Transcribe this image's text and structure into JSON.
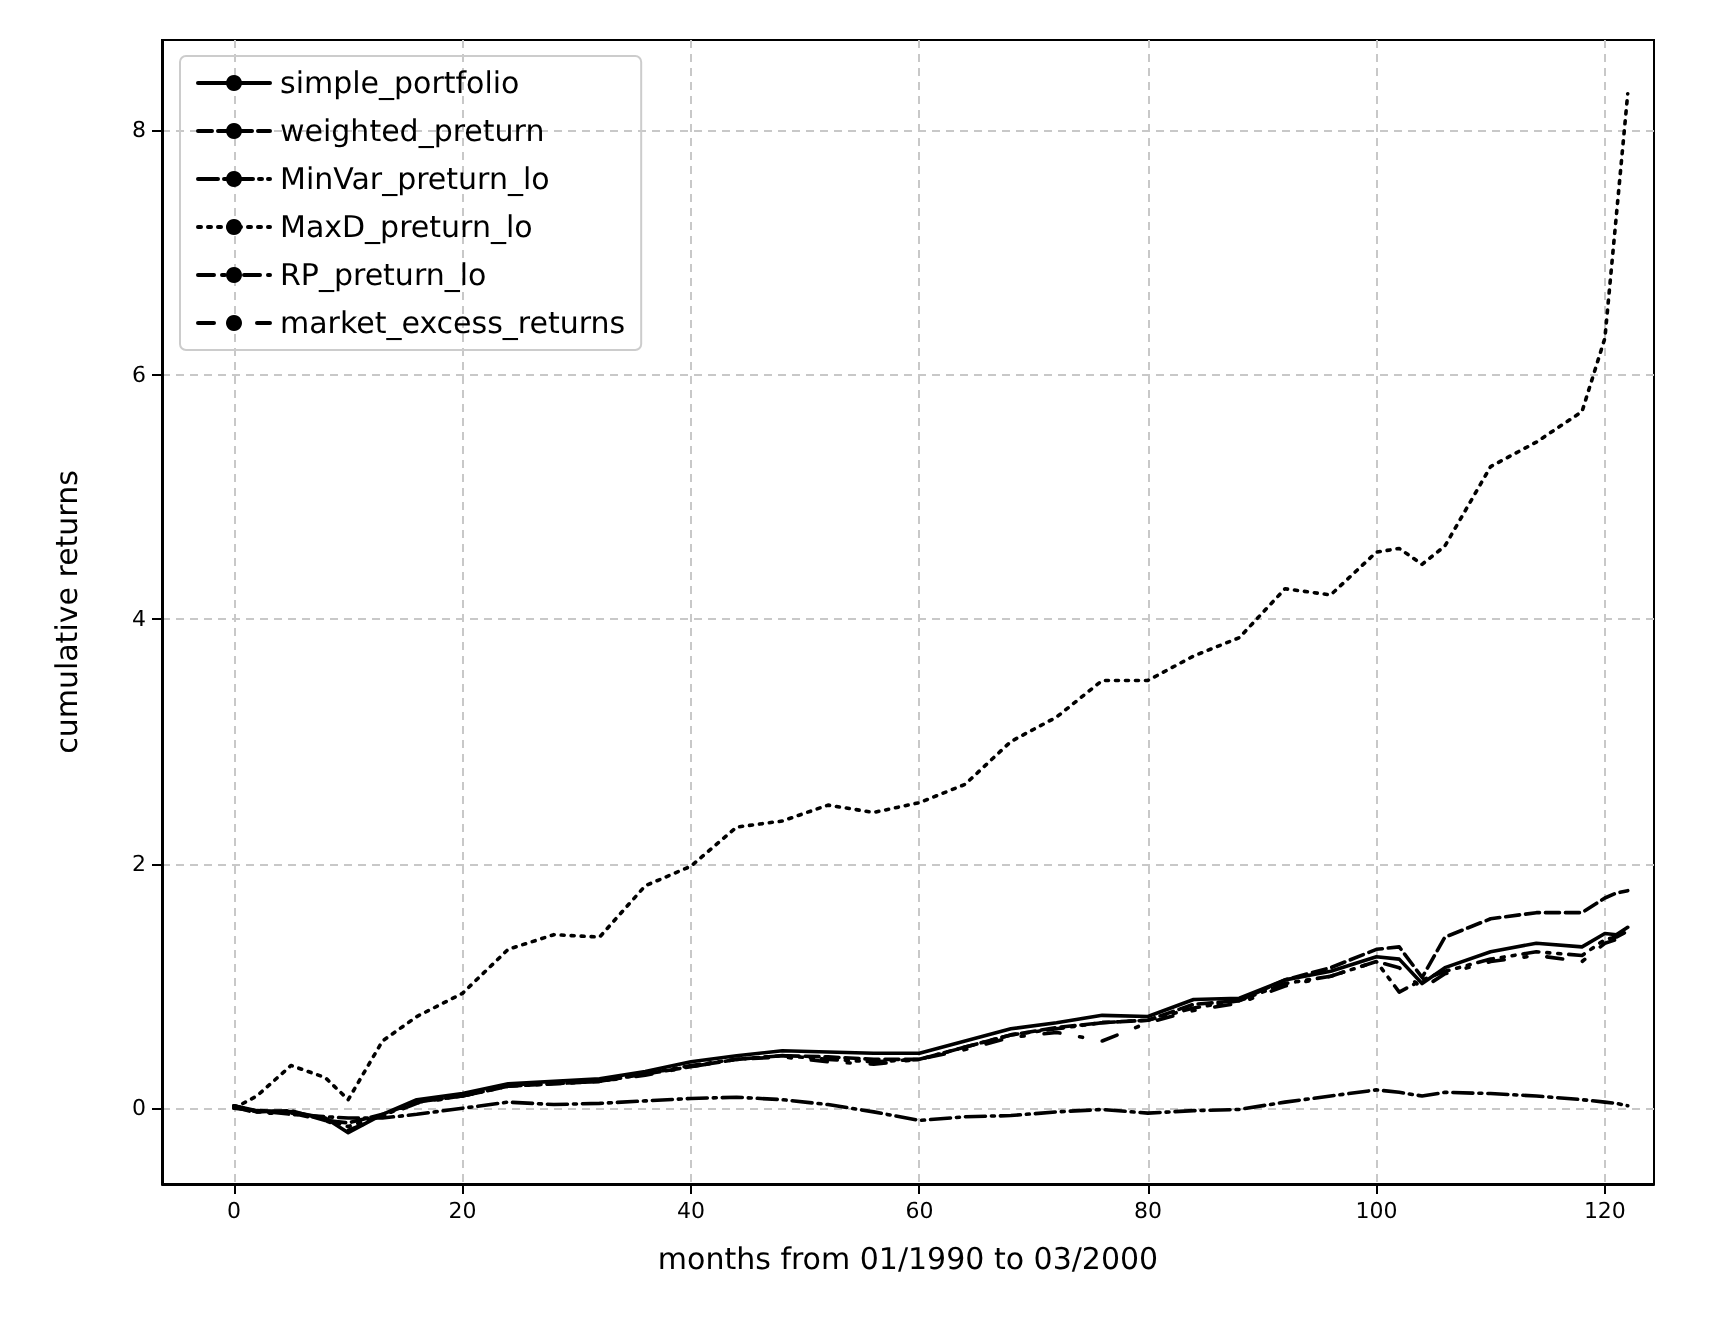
{
  "chart_data": {
    "type": "line",
    "xlabel": "months from 01/1990 to 03/2000",
    "ylabel": "cumulative returns",
    "x": [
      0,
      2,
      5,
      8,
      10,
      13,
      16,
      20,
      24,
      28,
      32,
      36,
      40,
      44,
      48,
      52,
      56,
      60,
      64,
      68,
      72,
      76,
      80,
      84,
      88,
      92,
      96,
      100,
      102,
      104,
      106,
      110,
      114,
      118,
      120,
      121,
      122
    ],
    "series": [
      {
        "name": "simple_portfolio",
        "color": "#000000",
        "line_style": "solid",
        "values": [
          0.02,
          -0.02,
          -0.03,
          -0.08,
          -0.2,
          -0.05,
          0.07,
          0.12,
          0.2,
          0.22,
          0.24,
          0.3,
          0.38,
          0.43,
          0.47,
          0.46,
          0.45,
          0.45,
          0.55,
          0.65,
          0.7,
          0.76,
          0.75,
          0.89,
          0.9,
          1.05,
          1.12,
          1.24,
          1.22,
          1.02,
          1.15,
          1.28,
          1.35,
          1.32,
          1.43,
          1.42,
          1.48
        ]
      },
      {
        "name": "weighted_preturn",
        "color": "#000000",
        "line_style": "dashed",
        "values": [
          0.02,
          -0.03,
          -0.02,
          -0.1,
          -0.12,
          -0.05,
          0.05,
          0.1,
          0.18,
          0.2,
          0.22,
          0.28,
          0.34,
          0.4,
          0.43,
          0.42,
          0.4,
          0.4,
          0.5,
          0.6,
          0.66,
          0.7,
          0.72,
          0.85,
          0.88,
          1.05,
          1.15,
          1.3,
          1.32,
          1.07,
          1.4,
          1.55,
          1.6,
          1.6,
          1.72,
          1.76,
          1.78
        ]
      },
      {
        "name": "MinVar_preturn_lo",
        "color": "#000000",
        "line_style": "dashdot",
        "values": [
          0,
          -0.02,
          -0.05,
          -0.07,
          -0.08,
          -0.08,
          -0.05,
          0.0,
          0.05,
          0.03,
          0.04,
          0.06,
          0.08,
          0.09,
          0.07,
          0.03,
          -0.03,
          -0.1,
          -0.07,
          -0.06,
          -0.03,
          -0.01,
          -0.04,
          -0.02,
          -0.01,
          0.05,
          0.1,
          0.15,
          0.13,
          0.1,
          0.13,
          0.12,
          0.1,
          0.07,
          0.05,
          0.04,
          0.02
        ]
      },
      {
        "name": "MaxD_preturn_lo",
        "color": "#000000",
        "line_style": "dotted",
        "values": [
          0,
          0.1,
          0.35,
          0.25,
          0.07,
          0.55,
          0.75,
          0.94,
          1.3,
          1.42,
          1.4,
          1.82,
          1.98,
          2.3,
          2.35,
          2.48,
          2.42,
          2.5,
          2.65,
          3.0,
          3.2,
          3.5,
          3.5,
          3.7,
          3.85,
          4.25,
          4.2,
          4.55,
          4.58,
          4.45,
          4.6,
          5.25,
          5.45,
          5.7,
          6.3,
          7.3,
          8.3
        ]
      },
      {
        "name": "RP_preturn_lo",
        "color": "#000000",
        "line_style": "dashdotdot",
        "values": [
          0.02,
          -0.03,
          -0.03,
          -0.09,
          -0.15,
          -0.06,
          0.05,
          0.1,
          0.18,
          0.2,
          0.22,
          0.28,
          0.35,
          0.4,
          0.43,
          0.4,
          0.38,
          0.4,
          0.5,
          0.6,
          0.65,
          0.7,
          0.72,
          0.82,
          0.88,
          1.02,
          1.08,
          1.2,
          0.95,
          1.05,
          1.12,
          1.22,
          1.28,
          1.25,
          1.38,
          1.4,
          1.45
        ]
      },
      {
        "name": "market_excess_returns",
        "color": "#000000",
        "line_style": "loosedashdot",
        "values": [
          0.01,
          -0.04,
          -0.04,
          -0.1,
          -0.18,
          -0.07,
          0.04,
          0.1,
          0.19,
          0.21,
          0.22,
          0.27,
          0.34,
          0.4,
          0.42,
          0.38,
          0.36,
          0.4,
          0.48,
          0.58,
          0.62,
          0.55,
          0.7,
          0.8,
          0.86,
          1.0,
          1.08,
          1.2,
          1.15,
          0.98,
          1.1,
          1.2,
          1.25,
          1.2,
          1.35,
          1.38,
          1.42
        ]
      }
    ],
    "xlim": [
      -6.3,
      124.3
    ],
    "xticks": [
      0,
      20,
      40,
      60,
      80,
      100,
      120
    ],
    "ylim": [
      -0.62,
      8.74
    ],
    "yticks": [
      0,
      2,
      4,
      6,
      8
    ],
    "grid": true,
    "legend": "top left",
    "marker": "none"
  }
}
